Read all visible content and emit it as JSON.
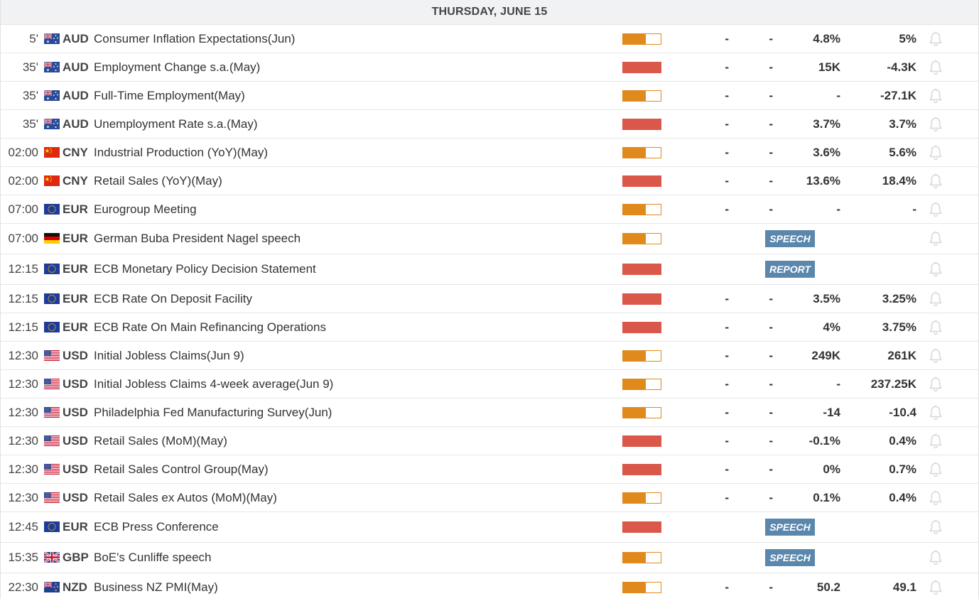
{
  "header": {
    "date_label": "THURSDAY, JUNE 15"
  },
  "colors": {
    "high_impact": "#d9584a",
    "medium_impact": "#e08a1e",
    "badge": "#5b87ad"
  },
  "rows": [
    {
      "time": "5'",
      "flag": "au-flag-icon",
      "currency": "AUD",
      "event": "Consumer Inflation Expectations(Jun)",
      "impact": "medium",
      "actual": "-",
      "deviation": "-",
      "consensus": "4.8%",
      "previous": "5%"
    },
    {
      "time": "35'",
      "flag": "au-flag-icon",
      "currency": "AUD",
      "event": "Employment Change s.a.(May)",
      "impact": "high",
      "actual": "-",
      "deviation": "-",
      "consensus": "15K",
      "previous": "-4.3K"
    },
    {
      "time": "35'",
      "flag": "au-flag-icon",
      "currency": "AUD",
      "event": "Full-Time Employment(May)",
      "impact": "medium",
      "actual": "-",
      "deviation": "-",
      "consensus": "-",
      "previous": "-27.1K"
    },
    {
      "time": "35'",
      "flag": "au-flag-icon",
      "currency": "AUD",
      "event": "Unemployment Rate s.a.(May)",
      "impact": "high",
      "actual": "-",
      "deviation": "-",
      "consensus": "3.7%",
      "previous": "3.7%"
    },
    {
      "time": "02:00",
      "flag": "cn-flag-icon",
      "currency": "CNY",
      "event": "Industrial Production (YoY)(May)",
      "impact": "medium",
      "actual": "-",
      "deviation": "-",
      "consensus": "3.6%",
      "previous": "5.6%"
    },
    {
      "time": "02:00",
      "flag": "cn-flag-icon",
      "currency": "CNY",
      "event": "Retail Sales (YoY)(May)",
      "impact": "high",
      "actual": "-",
      "deviation": "-",
      "consensus": "13.6%",
      "previous": "18.4%"
    },
    {
      "time": "07:00",
      "flag": "eu-flag-icon",
      "currency": "EUR",
      "event": "Eurogroup Meeting",
      "impact": "medium",
      "actual": "-",
      "deviation": "-",
      "consensus": "-",
      "previous": "-"
    },
    {
      "time": "07:00",
      "flag": "de-flag-icon",
      "currency": "EUR",
      "event": "German Buba President Nagel speech",
      "impact": "medium",
      "badge": "SPEECH"
    },
    {
      "time": "12:15",
      "flag": "eu-flag-icon",
      "currency": "EUR",
      "event": "ECB Monetary Policy Decision Statement",
      "impact": "high",
      "badge": "REPORT"
    },
    {
      "time": "12:15",
      "flag": "eu-flag-icon",
      "currency": "EUR",
      "event": "ECB Rate On Deposit Facility",
      "impact": "high",
      "actual": "-",
      "deviation": "-",
      "consensus": "3.5%",
      "previous": "3.25%"
    },
    {
      "time": "12:15",
      "flag": "eu-flag-icon",
      "currency": "EUR",
      "event": "ECB Rate On Main Refinancing Operations",
      "impact": "high",
      "actual": "-",
      "deviation": "-",
      "consensus": "4%",
      "previous": "3.75%"
    },
    {
      "time": "12:30",
      "flag": "us-flag-icon",
      "currency": "USD",
      "event": "Initial Jobless Claims(Jun 9)",
      "impact": "medium",
      "actual": "-",
      "deviation": "-",
      "consensus": "249K",
      "previous": "261K"
    },
    {
      "time": "12:30",
      "flag": "us-flag-icon",
      "currency": "USD",
      "event": "Initial Jobless Claims 4-week average(Jun 9)",
      "impact": "medium",
      "actual": "-",
      "deviation": "-",
      "consensus": "-",
      "previous": "237.25K"
    },
    {
      "time": "12:30",
      "flag": "us-flag-icon",
      "currency": "USD",
      "event": "Philadelphia Fed Manufacturing Survey(Jun)",
      "impact": "medium",
      "actual": "-",
      "deviation": "-",
      "consensus": "-14",
      "previous": "-10.4"
    },
    {
      "time": "12:30",
      "flag": "us-flag-icon",
      "currency": "USD",
      "event": "Retail Sales (MoM)(May)",
      "impact": "high",
      "actual": "-",
      "deviation": "-",
      "consensus": "-0.1%",
      "previous": "0.4%"
    },
    {
      "time": "12:30",
      "flag": "us-flag-icon",
      "currency": "USD",
      "event": "Retail Sales Control Group(May)",
      "impact": "high",
      "actual": "-",
      "deviation": "-",
      "consensus": "0%",
      "previous": "0.7%"
    },
    {
      "time": "12:30",
      "flag": "us-flag-icon",
      "currency": "USD",
      "event": "Retail Sales ex Autos (MoM)(May)",
      "impact": "medium",
      "actual": "-",
      "deviation": "-",
      "consensus": "0.1%",
      "previous": "0.4%"
    },
    {
      "time": "12:45",
      "flag": "eu-flag-icon",
      "currency": "EUR",
      "event": "ECB Press Conference",
      "impact": "high",
      "badge": "SPEECH"
    },
    {
      "time": "15:35",
      "flag": "gb-flag-icon",
      "currency": "GBP",
      "event": "BoE's Cunliffe speech",
      "impact": "medium",
      "badge": "SPEECH"
    },
    {
      "time": "22:30",
      "flag": "nz-flag-icon",
      "currency": "NZD",
      "event": "Business NZ PMI(May)",
      "impact": "medium",
      "actual": "-",
      "deviation": "-",
      "consensus": "50.2",
      "previous": "49.1"
    }
  ]
}
